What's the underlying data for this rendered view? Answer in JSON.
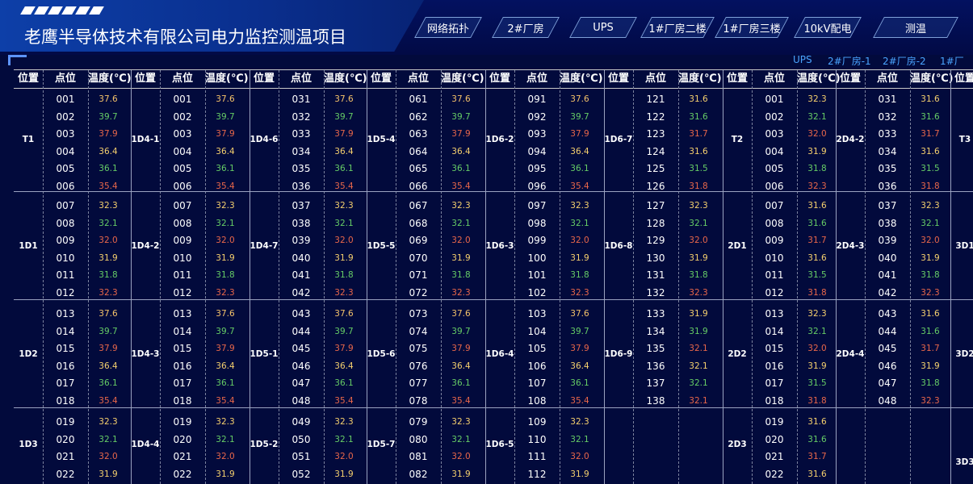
{
  "header": {
    "title": "老鹰半导体技术有限公司电力监控测温项目"
  },
  "nav": {
    "tabs": [
      {
        "label": "网络拓扑"
      },
      {
        "label": "2#厂房"
      },
      {
        "label": "UPS"
      },
      {
        "label": "1#厂房二楼"
      },
      {
        "label": "1#厂房三楼"
      },
      {
        "label": "10kV配电"
      },
      {
        "label": "测温"
      }
    ]
  },
  "building_links": [
    "UPS",
    "2#厂房-1",
    "2#厂房-2",
    "1#厂"
  ],
  "table": {
    "headers": {
      "position": "位置",
      "point": "点位",
      "temp": "温度(℃)"
    },
    "colors": {
      "orange": "#f5c36a",
      "green": "#66cc66",
      "red": "#e8674a",
      "yellow": "#f5d06e"
    },
    "temp_patterns": {
      "a": [
        {
          "v": "37.6",
          "c": "orange"
        },
        {
          "v": "39.7",
          "c": "green"
        },
        {
          "v": "37.9",
          "c": "red"
        },
        {
          "v": "36.4",
          "c": "yellow"
        },
        {
          "v": "36.1",
          "c": "green"
        },
        {
          "v": "35.4",
          "c": "red"
        }
      ],
      "b": [
        {
          "v": "32.3",
          "c": "yellow"
        },
        {
          "v": "32.1",
          "c": "green"
        },
        {
          "v": "32.0",
          "c": "red"
        },
        {
          "v": "31.9",
          "c": "yellow"
        },
        {
          "v": "31.8",
          "c": "green"
        },
        {
          "v": "32.3",
          "c": "red"
        }
      ],
      "c": [
        {
          "v": "31.6",
          "c": "yellow"
        },
        {
          "v": "31.6",
          "c": "green"
        },
        {
          "v": "31.7",
          "c": "red"
        },
        {
          "v": "31.6",
          "c": "yellow"
        },
        {
          "v": "31.5",
          "c": "green"
        },
        {
          "v": "31.8",
          "c": "red"
        }
      ],
      "d": [
        {
          "v": "31.6",
          "c": "yellow"
        },
        {
          "v": "31.6",
          "c": "green"
        },
        {
          "v": "31.7",
          "c": "red"
        },
        {
          "v": "31.6",
          "c": "yellow"
        },
        {
          "v": "31.5",
          "c": "green"
        },
        {
          "v": "31.8",
          "c": "red"
        }
      ],
      "e": [
        {
          "v": "32.3",
          "c": "yellow"
        },
        {
          "v": "32.1",
          "c": "green"
        },
        {
          "v": "32.0",
          "c": "red"
        },
        {
          "v": "31.9",
          "c": "yellow"
        },
        {
          "v": "31.8",
          "c": "green"
        },
        {
          "v": "32.3",
          "c": "red"
        }
      ],
      "f": [
        {
          "v": "31.6",
          "c": "yellow"
        },
        {
          "v": "31.6",
          "c": "green"
        },
        {
          "v": "31.7",
          "c": "red"
        },
        {
          "v": "31.6",
          "c": "yellow"
        },
        {
          "v": "31.5",
          "c": "green"
        },
        {
          "v": "31.8",
          "c": "red"
        }
      ],
      "g": [
        {
          "v": "31.9",
          "c": "yellow"
        },
        {
          "v": "31.9",
          "c": "green"
        },
        {
          "v": "32.1",
          "c": "red"
        },
        {
          "v": "32.1",
          "c": "yellow"
        },
        {
          "v": "32.1",
          "c": "green"
        },
        {
          "v": "32.1",
          "c": "red"
        }
      ],
      "h": [
        {
          "v": "32.3",
          "c": "yellow"
        },
        {
          "v": "32.1",
          "c": "green"
        },
        {
          "v": "32.0",
          "c": "red"
        },
        {
          "v": "31.9",
          "c": "yellow"
        },
        {
          "v": "31.5",
          "c": "green"
        },
        {
          "v": "31.8",
          "c": "red"
        }
      ],
      "i": [
        {
          "v": "31.6",
          "c": "yellow"
        },
        {
          "v": "31.6",
          "c": "green"
        },
        {
          "v": "31.7",
          "c": "red"
        },
        {
          "v": "31.9",
          "c": "yellow"
        },
        {
          "v": "31.8",
          "c": "green"
        },
        {
          "v": "32.3",
          "c": "red"
        }
      ],
      "j": [
        {
          "v": "32.3",
          "c": "yellow"
        },
        {
          "v": "32.1",
          "c": "green"
        },
        {
          "v": "32.0",
          "c": "red"
        },
        {
          "v": "31.9",
          "c": "yellow"
        }
      ],
      "k": [
        {
          "v": "31.6",
          "c": "yellow"
        },
        {
          "v": "31.6",
          "c": "green"
        },
        {
          "v": "31.7",
          "c": "red"
        },
        {
          "v": "31.6",
          "c": "yellow"
        }
      ]
    },
    "columns": [
      {
        "groups": [
          {
            "label": "T1",
            "start": 1,
            "count": 6,
            "temps": "a"
          },
          {
            "label": "1D1",
            "start": 7,
            "count": 6,
            "temps": "b"
          },
          {
            "label": "1D2",
            "start": 13,
            "count": 6,
            "temps": "a"
          },
          {
            "label": "1D3",
            "start": 19,
            "count": 4,
            "temps": "j"
          }
        ]
      },
      {
        "groups": [
          {
            "label": "1D4-1",
            "start": 1,
            "count": 6,
            "temps": "a"
          },
          {
            "label": "1D4-2",
            "start": 7,
            "count": 6,
            "temps": "b"
          },
          {
            "label": "1D4-3",
            "start": 13,
            "count": 6,
            "temps": "a"
          },
          {
            "label": "1D4-4",
            "start": 19,
            "count": 4,
            "temps": "j"
          }
        ]
      },
      {
        "groups": [
          {
            "label": "1D4-6",
            "start": 31,
            "count": 6,
            "temps": "a"
          },
          {
            "label": "1D4-7",
            "start": 37,
            "count": 6,
            "temps": "b"
          },
          {
            "label": "1D5-1",
            "start": 43,
            "count": 6,
            "temps": "a"
          },
          {
            "label": "1D5-2",
            "start": 49,
            "count": 4,
            "temps": "j"
          }
        ]
      },
      {
        "groups": [
          {
            "label": "1D5-4",
            "start": 61,
            "count": 6,
            "temps": "a"
          },
          {
            "label": "1D5-5",
            "start": 67,
            "count": 6,
            "temps": "b"
          },
          {
            "label": "1D5-6",
            "start": 73,
            "count": 6,
            "temps": "a"
          },
          {
            "label": "1D5-7",
            "start": 79,
            "count": 4,
            "temps": "j"
          }
        ]
      },
      {
        "groups": [
          {
            "label": "1D6-2",
            "start": 91,
            "count": 6,
            "temps": "a"
          },
          {
            "label": "1D6-3",
            "start": 97,
            "count": 6,
            "temps": "b"
          },
          {
            "label": "1D6-4",
            "start": 103,
            "count": 6,
            "temps": "a"
          },
          {
            "label": "1D6-5",
            "start": 109,
            "count": 4,
            "temps": "j"
          }
        ]
      },
      {
        "groups": [
          {
            "label": "1D6-7",
            "start": 121,
            "count": 6,
            "temps": "c"
          },
          {
            "label": "1D6-8",
            "start": 127,
            "count": 6,
            "temps": "b"
          },
          {
            "label": "1D6-9",
            "start": 133,
            "count": 6,
            "temps": "g"
          },
          {
            "label": "",
            "start": 0,
            "count": 0,
            "temps": "j"
          }
        ]
      },
      {
        "groups": [
          {
            "label": "T2",
            "start": 1,
            "count": 6,
            "temps": "e"
          },
          {
            "label": "2D1",
            "start": 7,
            "count": 6,
            "temps": "f"
          },
          {
            "label": "2D2",
            "start": 13,
            "count": 6,
            "temps": "h"
          },
          {
            "label": "2D3",
            "start": 19,
            "count": 4,
            "temps": "k"
          }
        ]
      },
      {
        "groups": [
          {
            "label": "2D4-2",
            "start": 31,
            "count": 6,
            "temps": "d"
          },
          {
            "label": "2D4-3",
            "start": 37,
            "count": 6,
            "temps": "b"
          },
          {
            "label": "2D4-4",
            "start": 43,
            "count": 6,
            "temps": "i"
          },
          {
            "label": "",
            "start": 0,
            "count": 0,
            "temps": "j"
          }
        ]
      },
      {
        "groups": [
          {
            "label": "T3",
            "start": 0,
            "count": 0,
            "temps": "a"
          },
          {
            "label": "3D1",
            "start": 0,
            "count": 0,
            "temps": "a"
          },
          {
            "label": "3D2",
            "start": 0,
            "count": 0,
            "temps": "a"
          },
          {
            "label": "3D3",
            "start": 0,
            "count": 0,
            "temps": "a"
          }
        ]
      }
    ]
  }
}
